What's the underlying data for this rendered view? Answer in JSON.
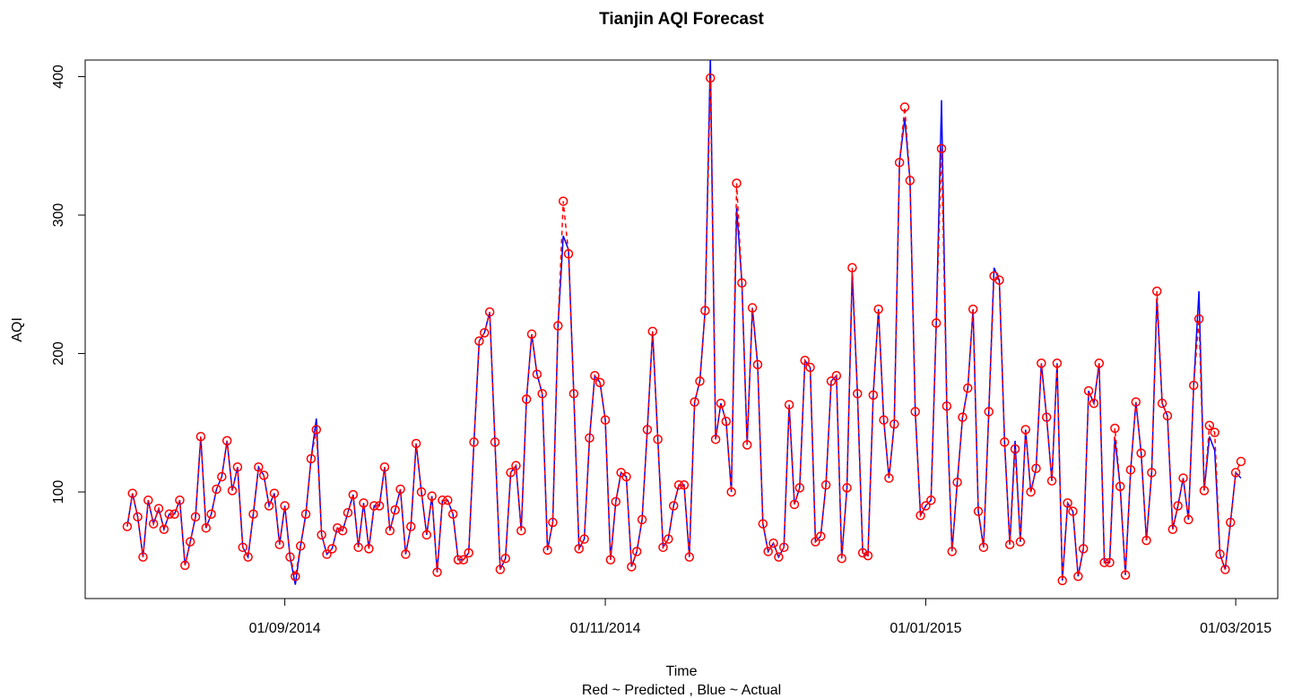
{
  "chart_data": {
    "type": "line",
    "title": "Tianjin AQI Forecast",
    "xlabel": "Time",
    "subtitle": "Red ~ Predicted , Blue ~ Actual",
    "ylabel": "AQI",
    "x": [
      "2014-08-02",
      "2014-08-03",
      "2014-08-04",
      "2014-08-05",
      "2014-08-06",
      "2014-08-07",
      "2014-08-08",
      "2014-08-09",
      "2014-08-10",
      "2014-08-11",
      "2014-08-12",
      "2014-08-13",
      "2014-08-14",
      "2014-08-15",
      "2014-08-16",
      "2014-08-17",
      "2014-08-18",
      "2014-08-19",
      "2014-08-20",
      "2014-08-21",
      "2014-08-22",
      "2014-08-23",
      "2014-08-24",
      "2014-08-25",
      "2014-08-26",
      "2014-08-27",
      "2014-08-28",
      "2014-08-29",
      "2014-08-30",
      "2014-08-31",
      "2014-09-01",
      "2014-09-02",
      "2014-09-03",
      "2014-09-04",
      "2014-09-05",
      "2014-09-06",
      "2014-09-07",
      "2014-09-08",
      "2014-09-09",
      "2014-09-10",
      "2014-09-11",
      "2014-09-12",
      "2014-09-13",
      "2014-09-14",
      "2014-09-15",
      "2014-09-16",
      "2014-09-17",
      "2014-09-18",
      "2014-09-19",
      "2014-09-20",
      "2014-09-21",
      "2014-09-22",
      "2014-09-23",
      "2014-09-24",
      "2014-09-25",
      "2014-09-26",
      "2014-09-27",
      "2014-09-28",
      "2014-09-29",
      "2014-09-30",
      "2014-10-01",
      "2014-10-02",
      "2014-10-03",
      "2014-10-04",
      "2014-10-05",
      "2014-10-06",
      "2014-10-07",
      "2014-10-08",
      "2014-10-09",
      "2014-10-10",
      "2014-10-11",
      "2014-10-12",
      "2014-10-13",
      "2014-10-14",
      "2014-10-15",
      "2014-10-16",
      "2014-10-17",
      "2014-10-18",
      "2014-10-19",
      "2014-10-20",
      "2014-10-21",
      "2014-10-22",
      "2014-10-23",
      "2014-10-24",
      "2014-10-25",
      "2014-10-26",
      "2014-10-27",
      "2014-10-28",
      "2014-10-29",
      "2014-10-30",
      "2014-10-31",
      "2014-11-01",
      "2014-11-02",
      "2014-11-03",
      "2014-11-04",
      "2014-11-05",
      "2014-11-06",
      "2014-11-07",
      "2014-11-08",
      "2014-11-09",
      "2014-11-10",
      "2014-11-11",
      "2014-11-12",
      "2014-11-13",
      "2014-11-14",
      "2014-11-15",
      "2014-11-16",
      "2014-11-17",
      "2014-11-18",
      "2014-11-19",
      "2014-11-20",
      "2014-11-21",
      "2014-11-22",
      "2014-11-23",
      "2014-11-24",
      "2014-11-25",
      "2014-11-26",
      "2014-11-27",
      "2014-11-28",
      "2014-11-29",
      "2014-11-30",
      "2014-12-01",
      "2014-12-02",
      "2014-12-03",
      "2014-12-04",
      "2014-12-05",
      "2014-12-06",
      "2014-12-07",
      "2014-12-08",
      "2014-12-09",
      "2014-12-10",
      "2014-12-11",
      "2014-12-12",
      "2014-12-13",
      "2014-12-14",
      "2014-12-15",
      "2014-12-16",
      "2014-12-17",
      "2014-12-18",
      "2014-12-19",
      "2014-12-20",
      "2014-12-21",
      "2014-12-22",
      "2014-12-23",
      "2014-12-24",
      "2014-12-25",
      "2014-12-26",
      "2014-12-27",
      "2014-12-28",
      "2014-12-29",
      "2014-12-30",
      "2014-12-31",
      "2015-01-01",
      "2015-01-02",
      "2015-01-03",
      "2015-01-04",
      "2015-01-05",
      "2015-01-06",
      "2015-01-07",
      "2015-01-08",
      "2015-01-09",
      "2015-01-10",
      "2015-01-11",
      "2015-01-12",
      "2015-01-13",
      "2015-01-14",
      "2015-01-15",
      "2015-01-16",
      "2015-01-17",
      "2015-01-18",
      "2015-01-19",
      "2015-01-20",
      "2015-01-21",
      "2015-01-22",
      "2015-01-23",
      "2015-01-24",
      "2015-01-25",
      "2015-01-26",
      "2015-01-27",
      "2015-01-28",
      "2015-01-29",
      "2015-01-30",
      "2015-01-31",
      "2015-02-01",
      "2015-02-02",
      "2015-02-03",
      "2015-02-04",
      "2015-02-05",
      "2015-02-06",
      "2015-02-07",
      "2015-02-08",
      "2015-02-09",
      "2015-02-10",
      "2015-02-11",
      "2015-02-12",
      "2015-02-13",
      "2015-02-14",
      "2015-02-15",
      "2015-02-16",
      "2015-02-17",
      "2015-02-18",
      "2015-02-19",
      "2015-02-20",
      "2015-02-21",
      "2015-02-22",
      "2015-02-23",
      "2015-02-24",
      "2015-02-25",
      "2015-02-26",
      "2015-02-27",
      "2015-02-28",
      "2015-03-01",
      "2015-03-02"
    ],
    "series": [
      {
        "color": "#0000ff",
        "linestyle": "solid",
        "marker": "none",
        "values": [
          75,
          99,
          82,
          53,
          94,
          77,
          88,
          73,
          84,
          84,
          94,
          47,
          64,
          82,
          140,
          74,
          84,
          102,
          111,
          137,
          101,
          118,
          60,
          53,
          84,
          118,
          112,
          90,
          99,
          62,
          90,
          53,
          33,
          61,
          84,
          124,
          153,
          69,
          55,
          59,
          74,
          72,
          85,
          98,
          60,
          92,
          59,
          90,
          90,
          118,
          72,
          87,
          102,
          55,
          75,
          135,
          100,
          69,
          97,
          42,
          94,
          94,
          84,
          51,
          51,
          56,
          136,
          209,
          215,
          230,
          136,
          44,
          52,
          114,
          119,
          72,
          167,
          214,
          185,
          171,
          58,
          78,
          220,
          285,
          275,
          171,
          59,
          66,
          139,
          184,
          179,
          152,
          51,
          93,
          114,
          111,
          46,
          57,
          80,
          145,
          216,
          138,
          60,
          66,
          90,
          105,
          105,
          53,
          165,
          180,
          231,
          415,
          138,
          164,
          151,
          100,
          305,
          251,
          134,
          233,
          192,
          77,
          57,
          63,
          53,
          60,
          163,
          91,
          103,
          195,
          190,
          64,
          68,
          105,
          180,
          184,
          52,
          103,
          258,
          171,
          56,
          54,
          170,
          232,
          152,
          110,
          149,
          338,
          370,
          325,
          158,
          83,
          90,
          94,
          222,
          383,
          162,
          57,
          107,
          154,
          175,
          232,
          86,
          60,
          158,
          262,
          253,
          136,
          62,
          137,
          64,
          145,
          100,
          117,
          193,
          154,
          108,
          193,
          36,
          92,
          86,
          39,
          59,
          173,
          164,
          193,
          49,
          49,
          139,
          104,
          40,
          116,
          165,
          128,
          65,
          114,
          240,
          164,
          155,
          73,
          90,
          110,
          80,
          177,
          245,
          101,
          140,
          130,
          55,
          44,
          78,
          114,
          110
        ]
      },
      {
        "color": "#ff0000",
        "linestyle": "dashed",
        "marker": "circle",
        "values": [
          75,
          99,
          82,
          53,
          94,
          77,
          88,
          73,
          84,
          84,
          94,
          47,
          64,
          82,
          140,
          74,
          84,
          102,
          111,
          137,
          101,
          118,
          60,
          53,
          84,
          118,
          112,
          90,
          99,
          62,
          90,
          53,
          39,
          61,
          84,
          124,
          145,
          69,
          55,
          59,
          74,
          72,
          85,
          98,
          60,
          92,
          59,
          90,
          90,
          118,
          72,
          87,
          102,
          55,
          75,
          135,
          100,
          69,
          97,
          42,
          94,
          94,
          84,
          51,
          51,
          56,
          136,
          209,
          215,
          230,
          136,
          44,
          52,
          114,
          119,
          72,
          167,
          214,
          185,
          171,
          58,
          78,
          220,
          310,
          272,
          171,
          59,
          66,
          139,
          184,
          179,
          152,
          51,
          93,
          114,
          111,
          46,
          57,
          80,
          145,
          216,
          138,
          60,
          66,
          90,
          105,
          105,
          53,
          165,
          180,
          231,
          399,
          138,
          164,
          151,
          100,
          323,
          251,
          134,
          233,
          192,
          77,
          57,
          63,
          53,
          60,
          163,
          91,
          103,
          195,
          190,
          64,
          68,
          105,
          180,
          184,
          52,
          103,
          262,
          171,
          56,
          54,
          170,
          232,
          152,
          110,
          149,
          338,
          378,
          325,
          158,
          83,
          90,
          94,
          222,
          348,
          162,
          57,
          107,
          154,
          175,
          232,
          86,
          60,
          158,
          256,
          253,
          136,
          62,
          131,
          64,
          145,
          100,
          117,
          193,
          154,
          108,
          193,
          36,
          92,
          86,
          39,
          59,
          173,
          164,
          193,
          49,
          49,
          146,
          104,
          40,
          116,
          165,
          128,
          65,
          114,
          245,
          164,
          155,
          73,
          90,
          110,
          80,
          177,
          225,
          101,
          148,
          143,
          55,
          44,
          78,
          114,
          122
        ]
      }
    ],
    "xlim": [
      "2014-07-25",
      "2015-03-09"
    ],
    "xticks": [
      {
        "value": "2014-09-01",
        "label": "01/09/2014"
      },
      {
        "value": "2014-11-01",
        "label": "01/11/2014"
      },
      {
        "value": "2015-01-01",
        "label": "01/01/2015"
      },
      {
        "value": "2015-03-01",
        "label": "01/03/2015"
      }
    ],
    "ylim": [
      23,
      412
    ],
    "yticks": [
      100,
      200,
      300,
      400
    ],
    "grid": false
  }
}
